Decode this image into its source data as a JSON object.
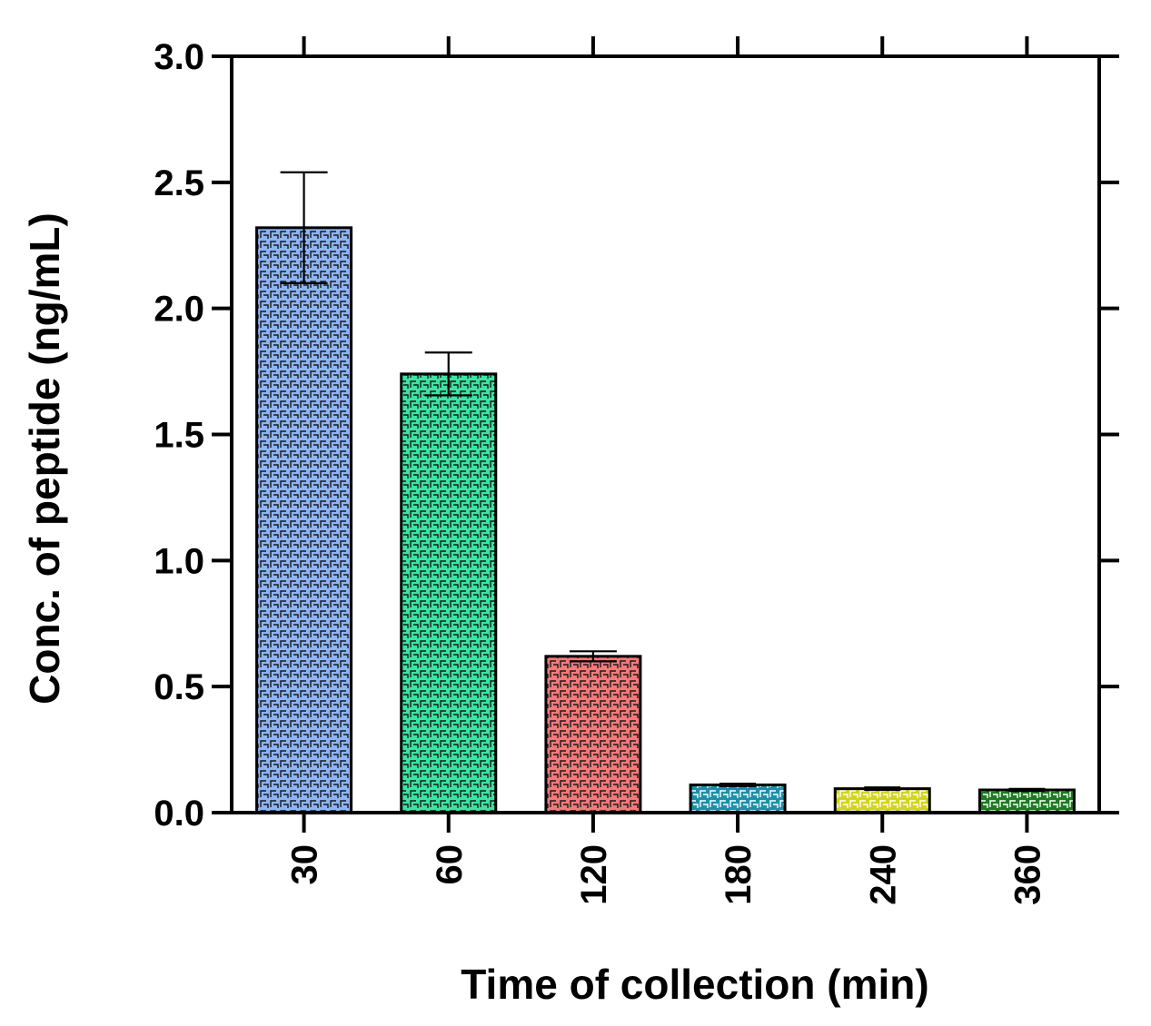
{
  "chart_data": {
    "type": "bar",
    "title": "",
    "categories": [
      "30",
      "60",
      "120",
      "180",
      "240",
      "360"
    ],
    "values": [
      2.32,
      1.74,
      0.62,
      0.11,
      0.095,
      0.09
    ],
    "errors": [
      0.22,
      0.085,
      0.02,
      0.005,
      0.005,
      0.004
    ],
    "colors": [
      "#8db4f5",
      "#3de3a2",
      "#f27a7a",
      "#1f8fa8",
      "#d2d423",
      "#1f7a23"
    ],
    "xlabel": "Time of collection (min)",
    "ylabel": "Conc. of peptide (ng/mL)",
    "ylim": [
      0,
      3.0
    ],
    "yticks": [
      "0.0",
      "0.5",
      "1.0",
      "1.5",
      "2.0",
      "2.5",
      "3.0"
    ],
    "grid": false
  }
}
